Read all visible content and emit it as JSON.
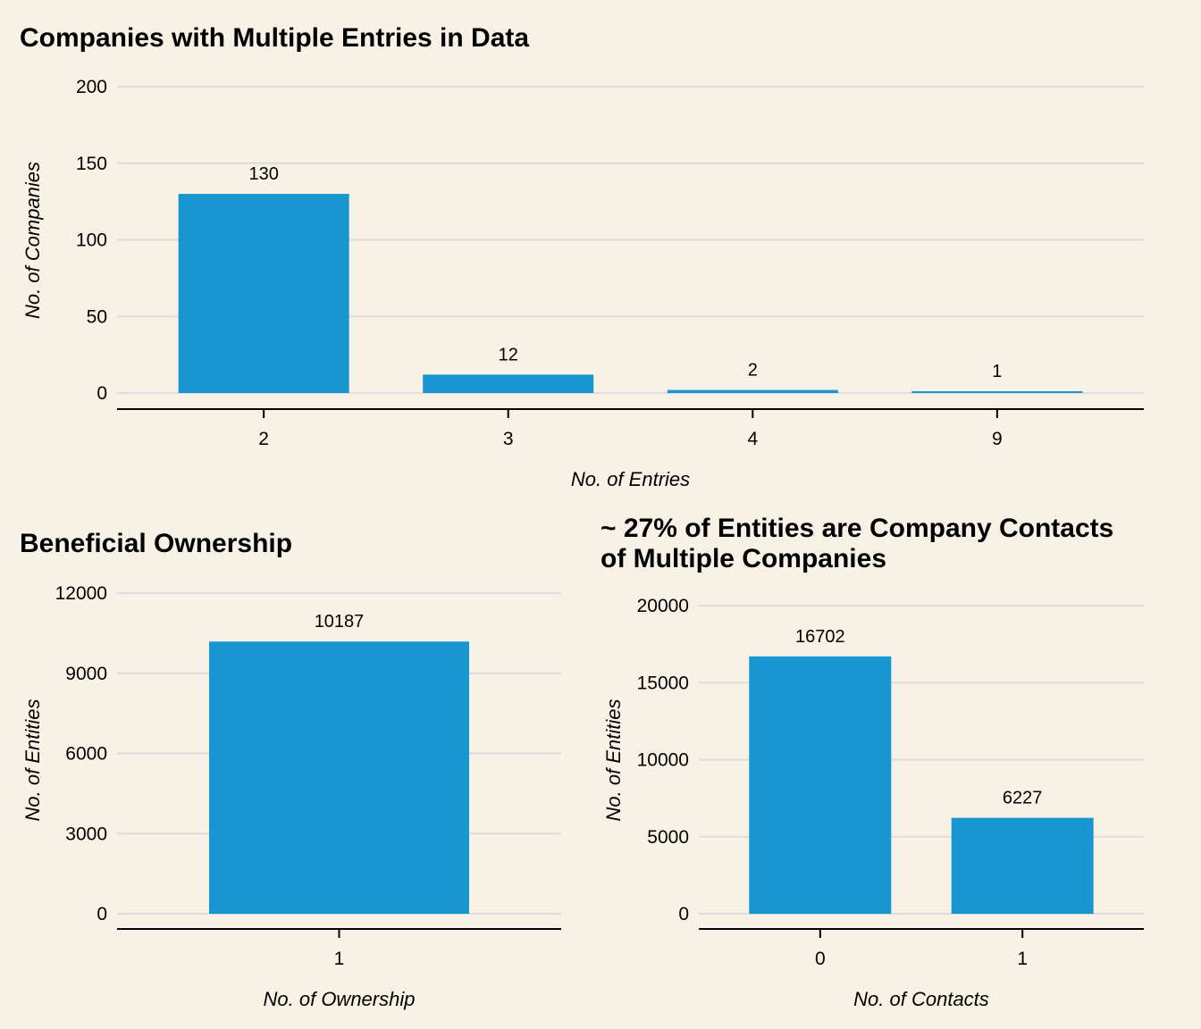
{
  "colors": {
    "background": "#f8f2e6",
    "bar": "#1896d2",
    "grid": "#dcdcdc"
  },
  "chart_data": [
    {
      "type": "bar",
      "title": "Companies with Multiple Entries in Data",
      "xlabel": "No. of Entries",
      "ylabel": "No. of Companies",
      "categories": [
        "2",
        "3",
        "4",
        "9"
      ],
      "values": [
        130,
        12,
        2,
        1
      ],
      "data_labels": [
        "130",
        "12",
        "2",
        "1"
      ],
      "yticks": [
        0,
        50,
        100,
        150,
        200
      ],
      "ytick_labels": [
        "0",
        "50",
        "100",
        "150",
        "200"
      ],
      "ylim": [
        0,
        200
      ],
      "grid": true,
      "legend": "none"
    },
    {
      "type": "bar",
      "title": "Beneficial Ownership",
      "xlabel": "No. of Ownership",
      "ylabel": "No. of Entities",
      "categories": [
        "1"
      ],
      "values": [
        10187
      ],
      "data_labels": [
        "10187"
      ],
      "yticks": [
        0,
        3000,
        6000,
        9000,
        12000
      ],
      "ytick_labels": [
        "0",
        "3000",
        "6000",
        "9000",
        "12000"
      ],
      "ylim": [
        0,
        12000
      ],
      "grid": true,
      "legend": "none"
    },
    {
      "type": "bar",
      "title": [
        "~ 27% of Entities are Company Contacts",
        "of Multiple Companies"
      ],
      "xlabel": "No. of Contacts",
      "ylabel": "No. of Entities",
      "categories": [
        "0",
        "1"
      ],
      "values": [
        16702,
        6227
      ],
      "data_labels": [
        "16702",
        "6227"
      ],
      "yticks": [
        0,
        5000,
        10000,
        15000,
        20000
      ],
      "ytick_labels": [
        "0",
        "5000",
        "10000",
        "15000",
        "20000"
      ],
      "ylim": [
        0,
        20000
      ],
      "grid": true,
      "legend": "none"
    }
  ]
}
